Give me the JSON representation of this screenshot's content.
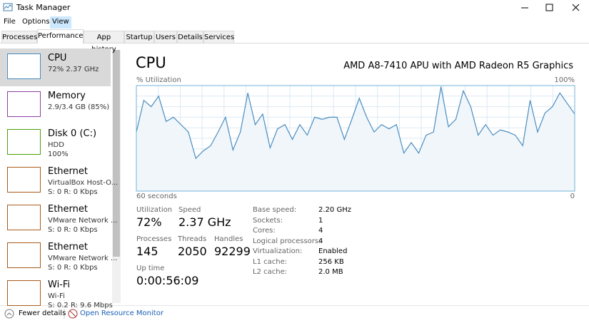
{
  "window": {
    "title": "Task Manager"
  },
  "menu": [
    "File",
    "Options",
    "View"
  ],
  "tabs": [
    "Processes",
    "Performance",
    "App history",
    "Startup",
    "Users",
    "Details",
    "Services"
  ],
  "sidebar": [
    {
      "name": "CPU",
      "lines": [
        "72% 2.37 GHz"
      ]
    },
    {
      "name": "Memory",
      "lines": [
        "2.9/3.4 GB (85%)"
      ]
    },
    {
      "name": "Disk 0 (C:)",
      "lines": [
        "HDD",
        "100%"
      ]
    },
    {
      "name": "Ethernet",
      "lines": [
        "VirtualBox Host-O...",
        "S: 0 R: 0 Kbps"
      ]
    },
    {
      "name": "Ethernet",
      "lines": [
        "VMware Network ...",
        "S: 0 R: 0 Kbps"
      ]
    },
    {
      "name": "Ethernet",
      "lines": [
        "VMware Network ...",
        "S: 0 R: 0 Kbps"
      ]
    },
    {
      "name": "Wi-Fi",
      "lines": [
        "Wi-Fi",
        "S: 0.2 R: 9.6 Mbps"
      ]
    }
  ],
  "main": {
    "title": "CPU",
    "model": "AMD A8-7410 APU with AMD Radeon R5 Graphics",
    "graph": {
      "y_label": "% Utilization",
      "top_label": "100%",
      "left_label": "60 seconds",
      "right_label": "0",
      "values": [
        56,
        86,
        80,
        90,
        66,
        70,
        63,
        56,
        31,
        38,
        43,
        56,
        70,
        39,
        56,
        93,
        63,
        73,
        41,
        59,
        63,
        49,
        63,
        53,
        70,
        68,
        70,
        70,
        49,
        68,
        88,
        70,
        56,
        63,
        59,
        63,
        36,
        46,
        36,
        53,
        56,
        99,
        61,
        68,
        95,
        80,
        53,
        63,
        53,
        58,
        56,
        53,
        43,
        86,
        56,
        74,
        80,
        93,
        83,
        73
      ]
    },
    "stats": [
      {
        "label": "Utilization",
        "value": "72%"
      },
      {
        "label": "Speed",
        "value": "2.37 GHz"
      },
      {
        "label": "Processes",
        "value": "145"
      },
      {
        "label": "Threads",
        "value": "2050"
      },
      {
        "label": "Handles",
        "value": "92299"
      },
      {
        "label": "Up time",
        "value": "0:00:56:09"
      }
    ],
    "details": [
      [
        "Base speed:",
        "2.20 GHz"
      ],
      [
        "Sockets:",
        "1"
      ],
      [
        "Cores:",
        "4"
      ],
      [
        "Logical processors:",
        "4"
      ],
      [
        "Virtualization:",
        "Enabled"
      ],
      [
        "L1 cache:",
        "256 KB"
      ],
      [
        "L2 cache:",
        "2.0 MB"
      ]
    ]
  },
  "footer": {
    "fewer": "Fewer details",
    "monitor": "Open Resource Monitor"
  }
}
